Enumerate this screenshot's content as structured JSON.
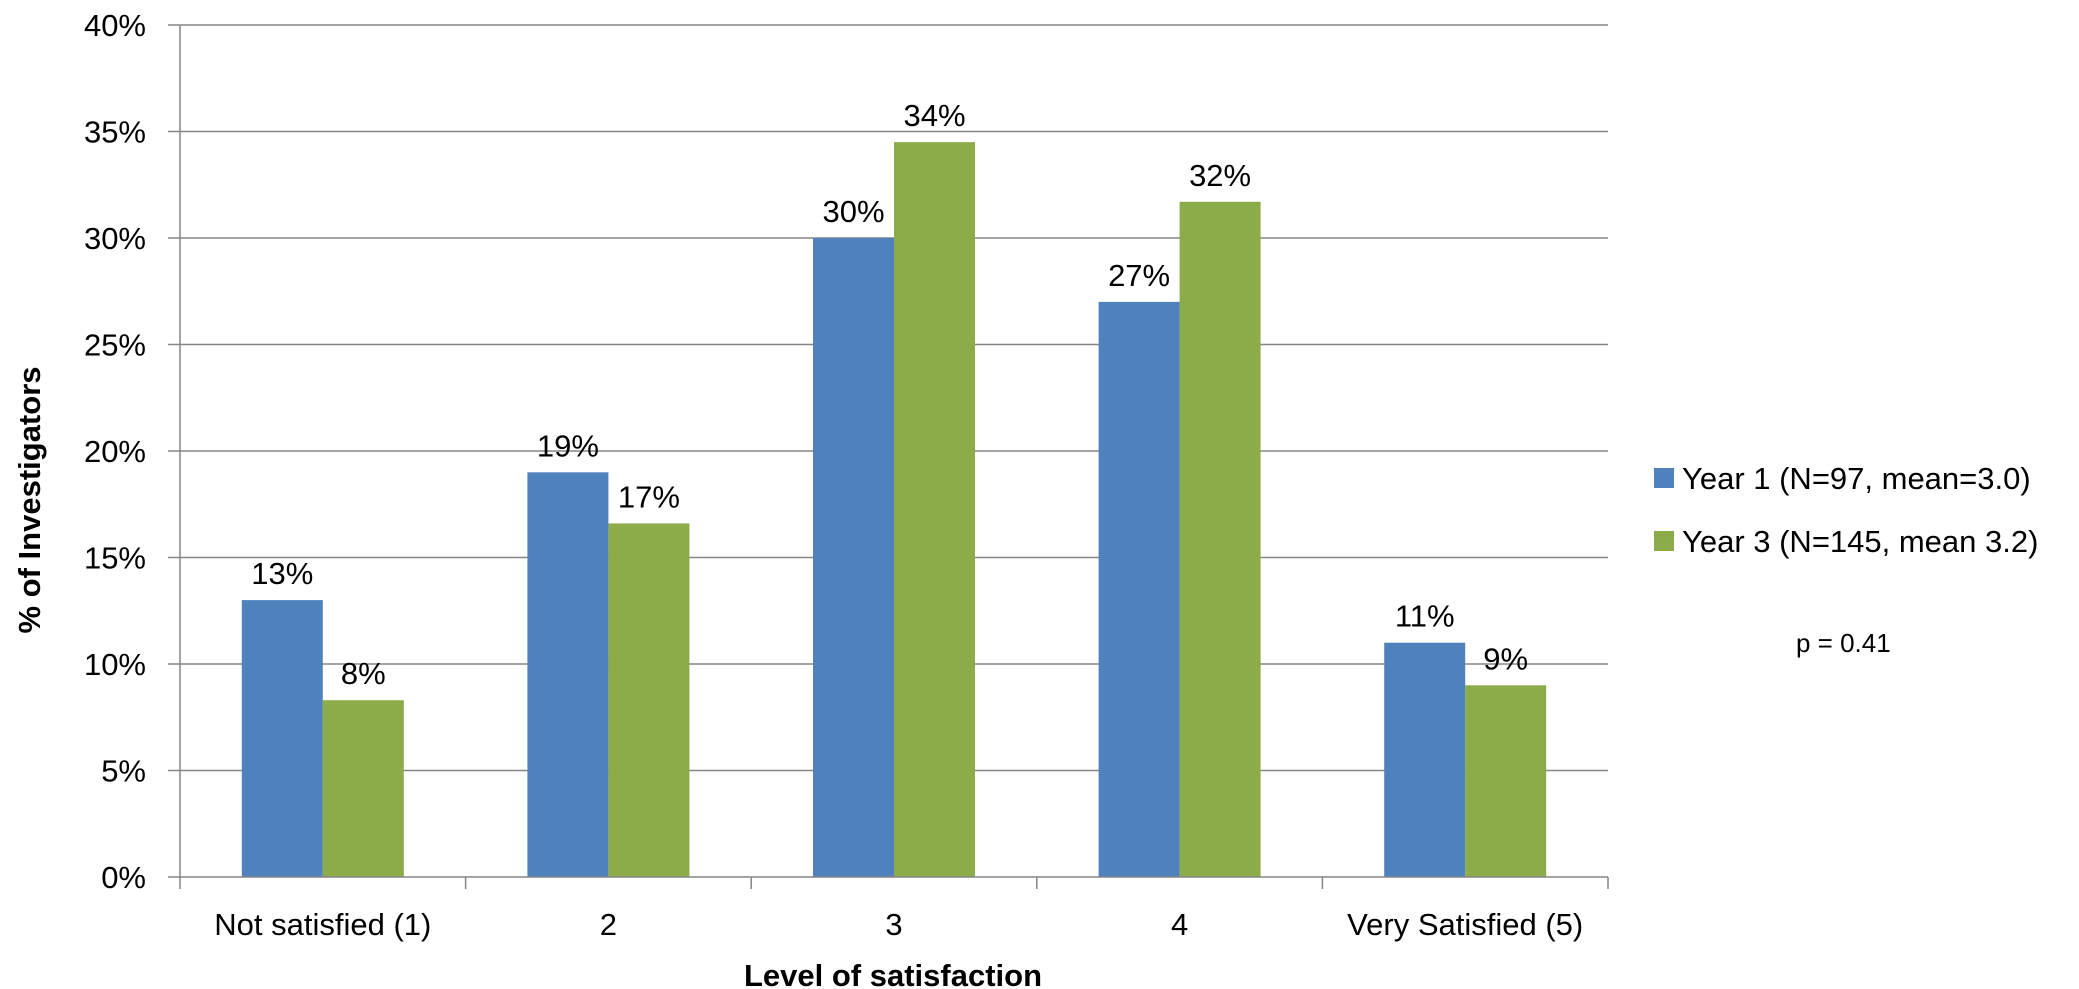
{
  "chart_data": {
    "type": "bar",
    "categories": [
      "Not satisfied (1)",
      "2",
      "3",
      "4",
      "Very Satisfied (5)"
    ],
    "series": [
      {
        "name": "Year 1 (N=97, mean=3.0)",
        "color": "#4F81BD",
        "values": [
          13,
          19,
          30,
          27,
          11
        ],
        "labels": [
          "13%",
          "19%",
          "30%",
          "27%",
          "11%"
        ]
      },
      {
        "name": "Year 3 (N=145, mean 3.2)",
        "color": "#8BAC48",
        "values": [
          8.3,
          16.6,
          34.5,
          31.7,
          9.0
        ],
        "labels": [
          "8%",
          "17%",
          "34%",
          "32%",
          "9%"
        ]
      }
    ],
    "xlabel": "Level of satisfaction",
    "ylabel": "% of Investigators",
    "ylim": [
      0,
      40
    ],
    "yticks": [
      0,
      5,
      10,
      15,
      20,
      25,
      30,
      35,
      40
    ],
    "ytick_labels": [
      "0%",
      "5%",
      "10%",
      "15%",
      "20%",
      "25%",
      "30%",
      "35%",
      "40%"
    ],
    "grid": true,
    "legend_position": "right",
    "annotation": "p = 0.41",
    "gridline_color": "#868686"
  }
}
